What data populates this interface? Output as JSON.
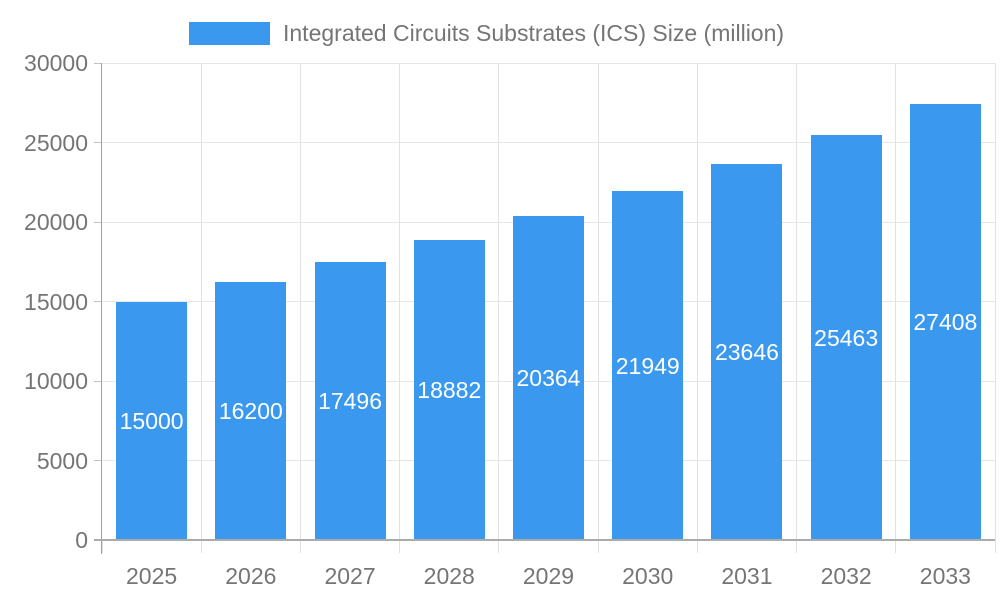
{
  "legend": {
    "label": "Integrated Circuits Substrates (ICS) Size (million)",
    "swatch_color": "#3a99ee"
  },
  "chart_data": {
    "type": "bar",
    "title": "Integrated Circuits Substrates (ICS) Size (million)",
    "categories": [
      "2025",
      "2026",
      "2027",
      "2028",
      "2029",
      "2030",
      "2031",
      "2032",
      "2033"
    ],
    "series": [
      {
        "name": "Integrated Circuits Substrates (ICS) Size (million)",
        "values": [
          15000,
          16200,
          17496,
          18882,
          20364,
          21949,
          23646,
          25463,
          27408
        ],
        "color": "#3a99ee"
      }
    ],
    "value_labels": {
      "position": "inside-center",
      "color": "#ffffff"
    },
    "xlabel": "",
    "ylabel": "",
    "ylim": [
      0,
      30000
    ],
    "yticks": [
      0,
      5000,
      10000,
      15000,
      20000,
      25000,
      30000
    ],
    "grid": true,
    "legend_position": "top"
  },
  "colors": {
    "bar": "#3a99ee",
    "axis_text": "#757575",
    "bar_label_text": "#ffffff",
    "grid_line": "#e6e6e6",
    "axis_line": "#a0a0a0",
    "background": "#ffffff"
  }
}
